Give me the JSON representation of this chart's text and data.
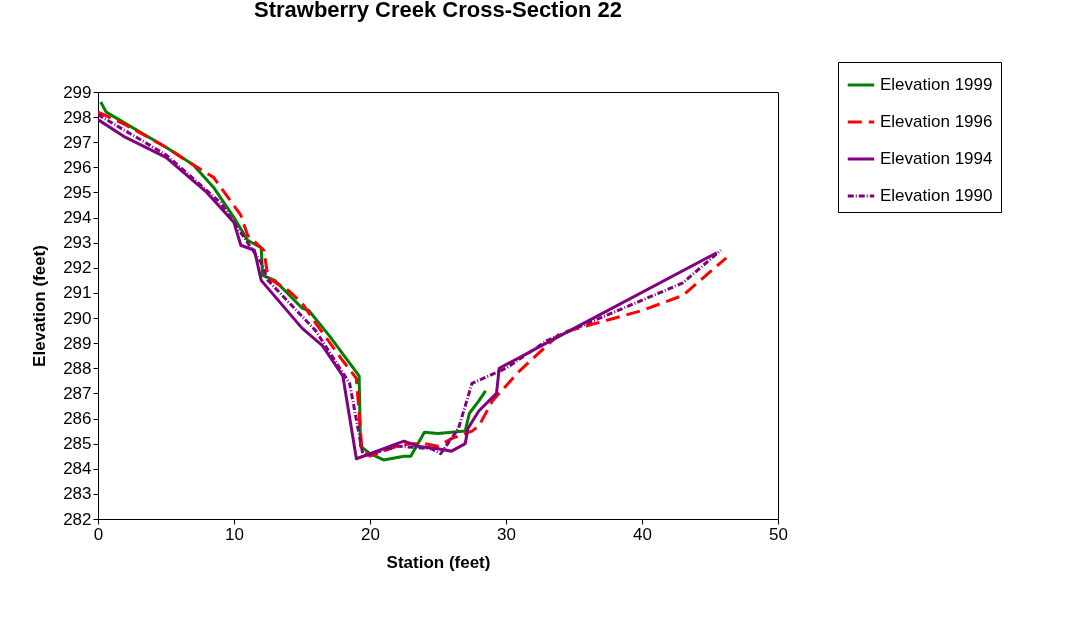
{
  "chart_data": {
    "type": "line",
    "title": "Strawberry Creek Cross-Section 22",
    "xlabel": "Station (feet)",
    "ylabel": "Elevation (feet)",
    "xlim": [
      0,
      50
    ],
    "xticks": [
      0,
      10,
      20,
      30,
      40,
      50
    ],
    "ylim": [
      282,
      299
    ],
    "yticks": [
      282,
      283,
      284,
      285,
      286,
      287,
      288,
      289,
      290,
      291,
      292,
      293,
      294,
      295,
      296,
      297,
      298,
      299
    ],
    "grid": false,
    "legend": "right",
    "marker": "none",
    "series": [
      {
        "name": "Elevation 1999",
        "color": "#008000",
        "line_style": "solid",
        "x": [
          0.2,
          0.6,
          5,
          7,
          8.5,
          10,
          11,
          12,
          12.1,
          13,
          15,
          15.5,
          17,
          19.2,
          19.3,
          20,
          21,
          22.5,
          23,
          24,
          25,
          26,
          27,
          27.3,
          28,
          28.5
        ],
        "values": [
          298.6,
          298.2,
          296.8,
          296.1,
          295.2,
          294,
          293.1,
          292.8,
          291.7,
          291.5,
          290.4,
          290.3,
          289.3,
          287.7,
          284.9,
          284.6,
          284.35,
          284.5,
          284.5,
          285.45,
          285.4,
          285.45,
          285.5,
          286.2,
          286.7,
          287.1
        ]
      },
      {
        "name": "Elevation 1996",
        "color": "#ff0000",
        "line_style": "dashed",
        "x": [
          0,
          2,
          5,
          7,
          8.5,
          10.5,
          11,
          12.2,
          12.5,
          14,
          15,
          16,
          18,
          19,
          19.4,
          20,
          21,
          22,
          23,
          24,
          25,
          26,
          27,
          27.5,
          28,
          29,
          31,
          34,
          40,
          43,
          46.2
        ],
        "values": [
          298.2,
          297.7,
          296.8,
          296.1,
          295.6,
          294.1,
          293.3,
          292.7,
          291.6,
          291.1,
          290.6,
          289.8,
          288.3,
          287.6,
          284.8,
          284.5,
          284.7,
          284.9,
          285,
          285,
          284.9,
          285.2,
          285.4,
          285.5,
          285.7,
          286.7,
          287.9,
          289.4,
          290.3,
          290.9,
          292.4
        ]
      },
      {
        "name": "Elevation 1994",
        "color": "#800080",
        "line_style": "solid",
        "x": [
          0,
          2,
          5,
          8,
          10,
          10.5,
          11.5,
          12,
          15,
          16.5,
          18,
          19,
          21.5,
          22.5,
          23.5,
          25,
          26,
          27,
          27.2,
          28,
          29.3,
          29.5,
          34,
          45.5
        ],
        "values": [
          297.9,
          297.2,
          296.4,
          295,
          293.8,
          292.9,
          292.7,
          291.5,
          289.6,
          288.9,
          287.7,
          284.4,
          284.9,
          285.1,
          284.9,
          284.8,
          284.7,
          285,
          285.6,
          286.3,
          287,
          288,
          289.3,
          292.6
        ]
      },
      {
        "name": "Elevation 1990",
        "color": "#800080",
        "line_style": "dotted",
        "x": [
          0,
          5,
          9,
          11,
          12,
          12.5,
          16,
          18.5,
          19.5,
          22,
          24.5,
          25.2,
          26.5,
          27.5,
          30,
          33,
          43,
          45.8
        ],
        "values": [
          298.1,
          296.5,
          294.6,
          293,
          292.2,
          291.5,
          289.5,
          287.4,
          284.5,
          284.9,
          284.8,
          284.6,
          285.6,
          287.4,
          288,
          289.1,
          291.4,
          292.7
        ]
      }
    ]
  }
}
